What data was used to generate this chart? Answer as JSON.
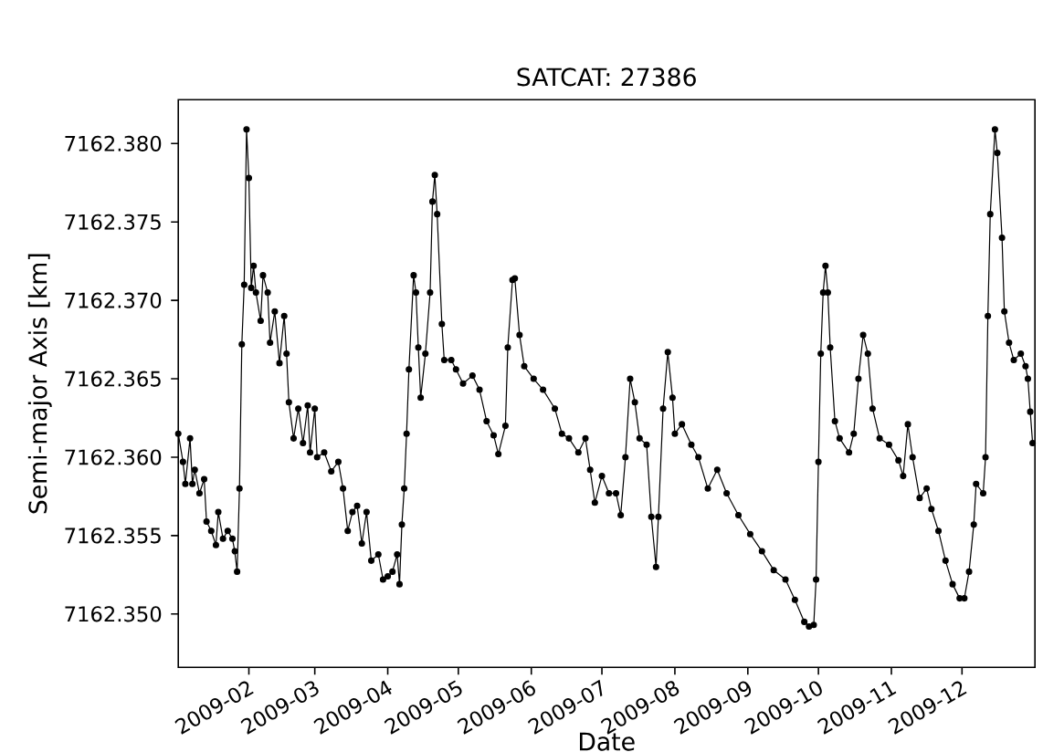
{
  "chart_data": {
    "type": "line",
    "title": "SATCAT: 27386",
    "xlabel": "Date",
    "ylabel": "Semi-major Axis [km]",
    "color": "#000000",
    "marker": "circle",
    "xlim": [
      "2009-01-02",
      "2010-01-01"
    ],
    "xticks": [
      {
        "value": "2009-02-01",
        "label": "2009-02"
      },
      {
        "value": "2009-03-01",
        "label": "2009-03"
      },
      {
        "value": "2009-04-01",
        "label": "2009-04"
      },
      {
        "value": "2009-05-01",
        "label": "2009-05"
      },
      {
        "value": "2009-06-01",
        "label": "2009-06"
      },
      {
        "value": "2009-07-01",
        "label": "2009-07"
      },
      {
        "value": "2009-08-01",
        "label": "2009-08"
      },
      {
        "value": "2009-09-01",
        "label": "2009-09"
      },
      {
        "value": "2009-10-01",
        "label": "2009-10"
      },
      {
        "value": "2009-11-01",
        "label": "2009-11"
      },
      {
        "value": "2009-12-01",
        "label": "2009-12"
      }
    ],
    "ylim": [
      7162.3466,
      7162.3828
    ],
    "yticks": [
      {
        "value": 7162.35,
        "label": "7162.350"
      },
      {
        "value": 7162.355,
        "label": "7162.355"
      },
      {
        "value": 7162.36,
        "label": "7162.360"
      },
      {
        "value": 7162.365,
        "label": "7162.365"
      },
      {
        "value": 7162.37,
        "label": "7162.370"
      },
      {
        "value": 7162.375,
        "label": "7162.375"
      },
      {
        "value": 7162.38,
        "label": "7162.380"
      }
    ],
    "x": [
      "2009-01-02",
      "2009-01-04",
      "2009-01-05",
      "2009-01-07",
      "2009-01-08",
      "2009-01-09",
      "2009-01-11",
      "2009-01-13",
      "2009-01-14",
      "2009-01-16",
      "2009-01-18",
      "2009-01-19",
      "2009-01-21",
      "2009-01-23",
      "2009-01-25",
      "2009-01-26",
      "2009-01-27",
      "2009-01-28",
      "2009-01-29",
      "2009-01-30",
      "2009-01-31",
      "2009-02-01",
      "2009-02-02",
      "2009-02-03",
      "2009-02-04",
      "2009-02-06",
      "2009-02-07",
      "2009-02-09",
      "2009-02-10",
      "2009-02-12",
      "2009-02-14",
      "2009-02-16",
      "2009-02-17",
      "2009-02-18",
      "2009-02-20",
      "2009-02-22",
      "2009-02-24",
      "2009-02-26",
      "2009-02-27",
      "2009-03-01",
      "2009-03-02",
      "2009-03-05",
      "2009-03-08",
      "2009-03-11",
      "2009-03-13",
      "2009-03-15",
      "2009-03-17",
      "2009-03-19",
      "2009-03-21",
      "2009-03-23",
      "2009-03-25",
      "2009-03-28",
      "2009-03-30",
      "2009-04-01",
      "2009-04-03",
      "2009-04-05",
      "2009-04-06",
      "2009-04-07",
      "2009-04-08",
      "2009-04-09",
      "2009-04-10",
      "2009-04-12",
      "2009-04-13",
      "2009-04-14",
      "2009-04-15",
      "2009-04-17",
      "2009-04-19",
      "2009-04-20",
      "2009-04-21",
      "2009-04-22",
      "2009-04-24",
      "2009-04-25",
      "2009-04-28",
      "2009-04-30",
      "2009-05-03",
      "2009-05-07",
      "2009-05-10",
      "2009-05-13",
      "2009-05-16",
      "2009-05-18",
      "2009-05-21",
      "2009-05-22",
      "2009-05-24",
      "2009-05-25",
      "2009-05-27",
      "2009-05-29",
      "2009-06-02",
      "2009-06-06",
      "2009-06-11",
      "2009-06-14",
      "2009-06-17",
      "2009-06-21",
      "2009-06-24",
      "2009-06-26",
      "2009-06-28",
      "2009-07-01",
      "2009-07-04",
      "2009-07-07",
      "2009-07-09",
      "2009-07-11",
      "2009-07-13",
      "2009-07-15",
      "2009-07-17",
      "2009-07-20",
      "2009-07-22",
      "2009-07-24",
      "2009-07-25",
      "2009-07-27",
      "2009-07-29",
      "2009-07-31",
      "2009-08-01",
      "2009-08-04",
      "2009-08-08",
      "2009-08-11",
      "2009-08-15",
      "2009-08-19",
      "2009-08-23",
      "2009-08-28",
      "2009-09-02",
      "2009-09-07",
      "2009-09-12",
      "2009-09-17",
      "2009-09-21",
      "2009-09-25",
      "2009-09-27",
      "2009-09-29",
      "2009-09-30",
      "2009-10-01",
      "2009-10-02",
      "2009-10-03",
      "2009-10-04",
      "2009-10-05",
      "2009-10-06",
      "2009-10-08",
      "2009-10-10",
      "2009-10-14",
      "2009-10-16",
      "2009-10-18",
      "2009-10-20",
      "2009-10-22",
      "2009-10-24",
      "2009-10-27",
      "2009-10-31",
      "2009-11-04",
      "2009-11-06",
      "2009-11-08",
      "2009-11-10",
      "2009-11-13",
      "2009-11-16",
      "2009-11-18",
      "2009-11-21",
      "2009-11-24",
      "2009-11-27",
      "2009-11-30",
      "2009-12-02",
      "2009-12-04",
      "2009-12-06",
      "2009-12-07",
      "2009-12-10",
      "2009-12-11",
      "2009-12-12",
      "2009-12-13",
      "2009-12-15",
      "2009-12-16",
      "2009-12-18",
      "2009-12-19",
      "2009-12-21",
      "2009-12-23",
      "2009-12-26",
      "2009-12-28",
      "2009-12-29",
      "2009-12-30",
      "2009-12-31"
    ],
    "values": [
      7162.3615,
      7162.3597,
      7162.3583,
      7162.3612,
      7162.3583,
      7162.3592,
      7162.3577,
      7162.3586,
      7162.3559,
      7162.3553,
      7162.3544,
      7162.3565,
      7162.3548,
      7162.3553,
      7162.3548,
      7162.354,
      7162.3527,
      7162.358,
      7162.3672,
      7162.371,
      7162.3809,
      7162.3778,
      7162.3708,
      7162.3722,
      7162.3705,
      7162.3687,
      7162.3716,
      7162.3705,
      7162.3673,
      7162.3693,
      7162.366,
      7162.369,
      7162.3666,
      7162.3635,
      7162.3612,
      7162.3631,
      7162.3609,
      7162.3633,
      7162.3603,
      7162.3631,
      7162.36,
      7162.3603,
      7162.3591,
      7162.3597,
      7162.358,
      7162.3553,
      7162.3565,
      7162.3569,
      7162.3545,
      7162.3565,
      7162.3534,
      7162.3538,
      7162.3522,
      7162.3524,
      7162.3527,
      7162.3538,
      7162.3519,
      7162.3557,
      7162.358,
      7162.3615,
      7162.3656,
      7162.3716,
      7162.3705,
      7162.367,
      7162.3638,
      7162.3666,
      7162.3705,
      7162.3763,
      7162.378,
      7162.3755,
      7162.3685,
      7162.3662,
      7162.3662,
      7162.3656,
      7162.3647,
      7162.3652,
      7162.3643,
      7162.3623,
      7162.3614,
      7162.3602,
      7162.362,
      7162.367,
      7162.3713,
      7162.3714,
      7162.3678,
      7162.3658,
      7162.365,
      7162.3643,
      7162.3631,
      7162.3615,
      7162.3612,
      7162.3603,
      7162.3612,
      7162.3592,
      7162.3571,
      7162.3588,
      7162.3577,
      7162.3577,
      7162.3563,
      7162.36,
      7162.365,
      7162.3635,
      7162.3612,
      7162.3608,
      7162.3562,
      7162.353,
      7162.3562,
      7162.3631,
      7162.3667,
      7162.3638,
      7162.3615,
      7162.3621,
      7162.3608,
      7162.36,
      7162.358,
      7162.3592,
      7162.3577,
      7162.3563,
      7162.3551,
      7162.354,
      7162.3528,
      7162.3522,
      7162.3509,
      7162.3495,
      7162.3492,
      7162.3493,
      7162.3522,
      7162.3597,
      7162.3666,
      7162.3705,
      7162.3722,
      7162.3705,
      7162.367,
      7162.3623,
      7162.3612,
      7162.3603,
      7162.3615,
      7162.365,
      7162.3678,
      7162.3666,
      7162.3631,
      7162.3612,
      7162.3608,
      7162.3598,
      7162.3588,
      7162.3621,
      7162.36,
      7162.3574,
      7162.358,
      7162.3567,
      7162.3553,
      7162.3534,
      7162.3519,
      7162.351,
      7162.351,
      7162.3527,
      7162.3557,
      7162.3583,
      7162.3577,
      7162.36,
      7162.369,
      7162.3755,
      7162.3809,
      7162.3794,
      7162.374,
      7162.3693,
      7162.3673,
      7162.3662,
      7162.3666,
      7162.3658,
      7162.365,
      7162.3629,
      7162.3609
    ]
  }
}
